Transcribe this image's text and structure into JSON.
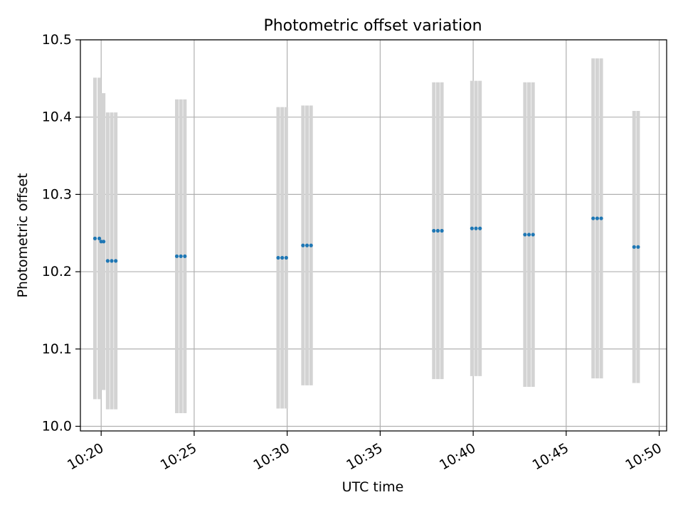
{
  "chart_data": {
    "type": "scatter",
    "title": "Photometric offset variation",
    "xlabel": "UTC time",
    "ylabel": "Photometric offset",
    "xlim": [
      "10:18:53",
      "10:50:24"
    ],
    "ylim": [
      9.994,
      10.5
    ],
    "xticks": [
      "10:20",
      "10:25",
      "10:30",
      "10:35",
      "10:40",
      "10:45",
      "10:50"
    ],
    "yticks": [
      "10.0",
      "10.1",
      "10.2",
      "10.3",
      "10.4",
      "10.5"
    ],
    "grid": true,
    "colors": {
      "marker": "#1f77b4",
      "errorbar": "#d3d3d3",
      "grid": "#b0b0b0"
    },
    "points": [
      {
        "x": "10:19:40",
        "y": 10.243,
        "yerr": 0.208
      },
      {
        "x": "10:19:54",
        "y": 10.243,
        "yerr": 0.208
      },
      {
        "x": "10:20:00",
        "y": 10.239,
        "yerr": 0.192
      },
      {
        "x": "10:20:08",
        "y": 10.239,
        "yerr": 0.192
      },
      {
        "x": "10:20:21",
        "y": 10.214,
        "yerr": 0.192
      },
      {
        "x": "10:20:34",
        "y": 10.214,
        "yerr": 0.192
      },
      {
        "x": "10:20:47",
        "y": 10.214,
        "yerr": 0.192
      },
      {
        "x": "10:24:04",
        "y": 10.22,
        "yerr": 0.203
      },
      {
        "x": "10:24:17",
        "y": 10.22,
        "yerr": 0.203
      },
      {
        "x": "10:24:30",
        "y": 10.22,
        "yerr": 0.203
      },
      {
        "x": "10:29:31",
        "y": 10.218,
        "yerr": 0.195
      },
      {
        "x": "10:29:44",
        "y": 10.218,
        "yerr": 0.195
      },
      {
        "x": "10:29:57",
        "y": 10.218,
        "yerr": 0.195
      },
      {
        "x": "10:30:51",
        "y": 10.234,
        "yerr": 0.181
      },
      {
        "x": "10:31:04",
        "y": 10.234,
        "yerr": 0.181
      },
      {
        "x": "10:31:17",
        "y": 10.234,
        "yerr": 0.181
      },
      {
        "x": "10:37:53",
        "y": 10.253,
        "yerr": 0.192
      },
      {
        "x": "10:38:06",
        "y": 10.253,
        "yerr": 0.192
      },
      {
        "x": "10:38:19",
        "y": 10.253,
        "yerr": 0.192
      },
      {
        "x": "10:39:56",
        "y": 10.256,
        "yerr": 0.191
      },
      {
        "x": "10:40:09",
        "y": 10.256,
        "yerr": 0.191
      },
      {
        "x": "10:40:22",
        "y": 10.256,
        "yerr": 0.191
      },
      {
        "x": "10:42:47",
        "y": 10.248,
        "yerr": 0.197
      },
      {
        "x": "10:43:00",
        "y": 10.248,
        "yerr": 0.197
      },
      {
        "x": "10:43:13",
        "y": 10.248,
        "yerr": 0.197
      },
      {
        "x": "10:46:27",
        "y": 10.269,
        "yerr": 0.207
      },
      {
        "x": "10:46:40",
        "y": 10.269,
        "yerr": 0.207
      },
      {
        "x": "10:46:53",
        "y": 10.269,
        "yerr": 0.207
      },
      {
        "x": "10:48:39",
        "y": 10.232,
        "yerr": 0.176
      },
      {
        "x": "10:48:52",
        "y": 10.232,
        "yerr": 0.176
      }
    ]
  }
}
